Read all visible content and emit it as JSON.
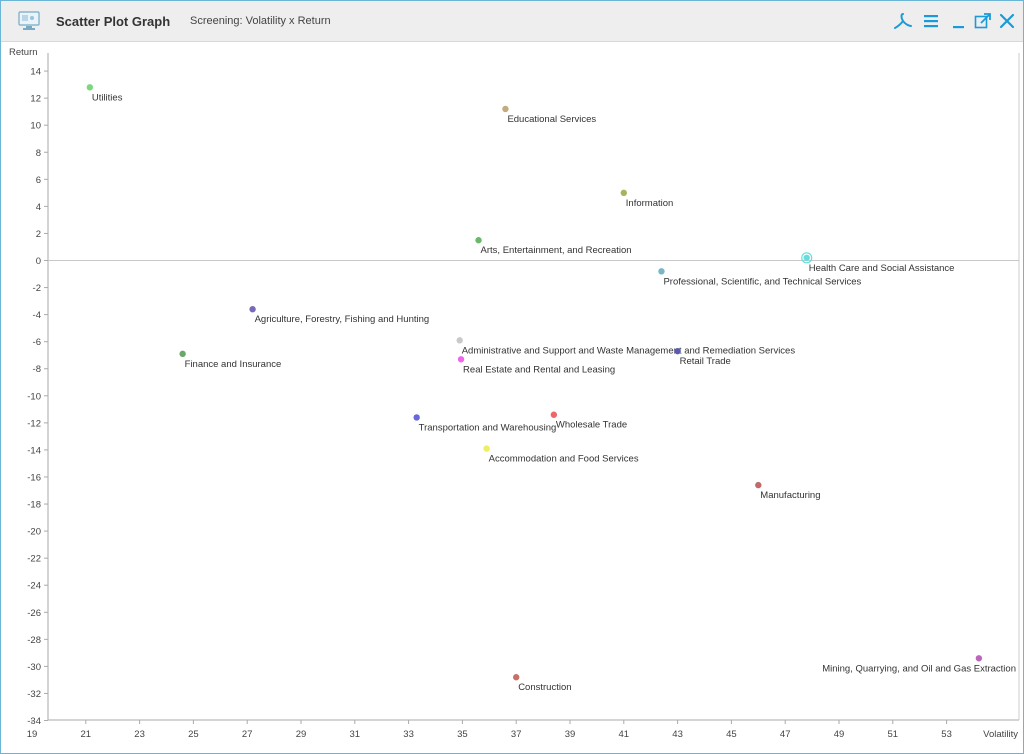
{
  "window": {
    "title": "Scatter Plot Graph",
    "subtitle": "Screening: Volatility x Return",
    "accent": "#1a9bd7",
    "icons": [
      "chart-app-icon",
      "acrobat-export-icon",
      "menu-icon",
      "minimize-icon",
      "popout-icon",
      "close-icon"
    ]
  },
  "chart_data": {
    "type": "scatter",
    "xlabel": "Volatility",
    "ylabel": "Return",
    "xlim": [
      19,
      55.5
    ],
    "ylim": [
      -34,
      14.6
    ],
    "x_ticks": [
      19,
      21,
      23,
      25,
      27,
      29,
      31,
      33,
      35,
      37,
      39,
      41,
      43,
      45,
      47,
      49,
      51,
      53
    ],
    "y_ticks": [
      14,
      12,
      10,
      8,
      6,
      4,
      2,
      0,
      -2,
      -4,
      -6,
      -8,
      -10,
      -12,
      -14,
      -16,
      -18,
      -20,
      -22,
      -24,
      -26,
      -28,
      -30,
      -32,
      -34
    ],
    "grid": false,
    "zero_line": true,
    "points": [
      {
        "label": "Utilities",
        "x": 21.15,
        "y": 12.8,
        "color": "#7dd87d"
      },
      {
        "label": "Educational Services",
        "x": 36.6,
        "y": 11.2,
        "color": "#c2ac7e"
      },
      {
        "label": "Information",
        "x": 41.0,
        "y": 5.0,
        "color": "#a8b45c"
      },
      {
        "label": "Arts, Entertainment, and Recreation",
        "x": 35.6,
        "y": 1.5,
        "color": "#6bb86b"
      },
      {
        "label": "Health Care and Social Assistance",
        "x": 47.8,
        "y": 0.2,
        "color": "#66dddd"
      },
      {
        "label": "Professional, Scientific, and Technical Services",
        "x": 42.4,
        "y": -0.8,
        "color": "#7ab6c4"
      },
      {
        "label": "Agriculture, Forestry, Fishing and Hunting",
        "x": 27.2,
        "y": -3.6,
        "color": "#7a68b8"
      },
      {
        "label": "Administrative and Support and Waste Management and Remediation Services",
        "x": 34.9,
        "y": -5.9,
        "color": "#c9c9c9"
      },
      {
        "label": "Retail Trade",
        "x": 43.0,
        "y": -6.7,
        "color": "#5a5ab0"
      },
      {
        "label": "Finance and Insurance",
        "x": 24.6,
        "y": -6.9,
        "color": "#6aa86a"
      },
      {
        "label": "Real Estate and Rental and Leasing",
        "x": 34.95,
        "y": -7.3,
        "color": "#ee66ee"
      },
      {
        "label": "Transportation and Warehousing",
        "x": 33.3,
        "y": -11.6,
        "color": "#6868dd"
      },
      {
        "label": "Wholesale Trade",
        "x": 38.4,
        "y": -11.4,
        "color": "#ee6666"
      },
      {
        "label": "Accommodation and Food Services",
        "x": 35.9,
        "y": -13.9,
        "color": "#eeee66"
      },
      {
        "label": "Manufacturing",
        "x": 46.0,
        "y": -16.6,
        "color": "#c06a6a"
      },
      {
        "label": "Mining, Quarrying, and Oil and Gas Extraction",
        "x": 54.2,
        "y": -29.4,
        "color": "#bb66bb"
      },
      {
        "label": "Construction",
        "x": 37.0,
        "y": -30.8,
        "color": "#c87068"
      }
    ]
  }
}
